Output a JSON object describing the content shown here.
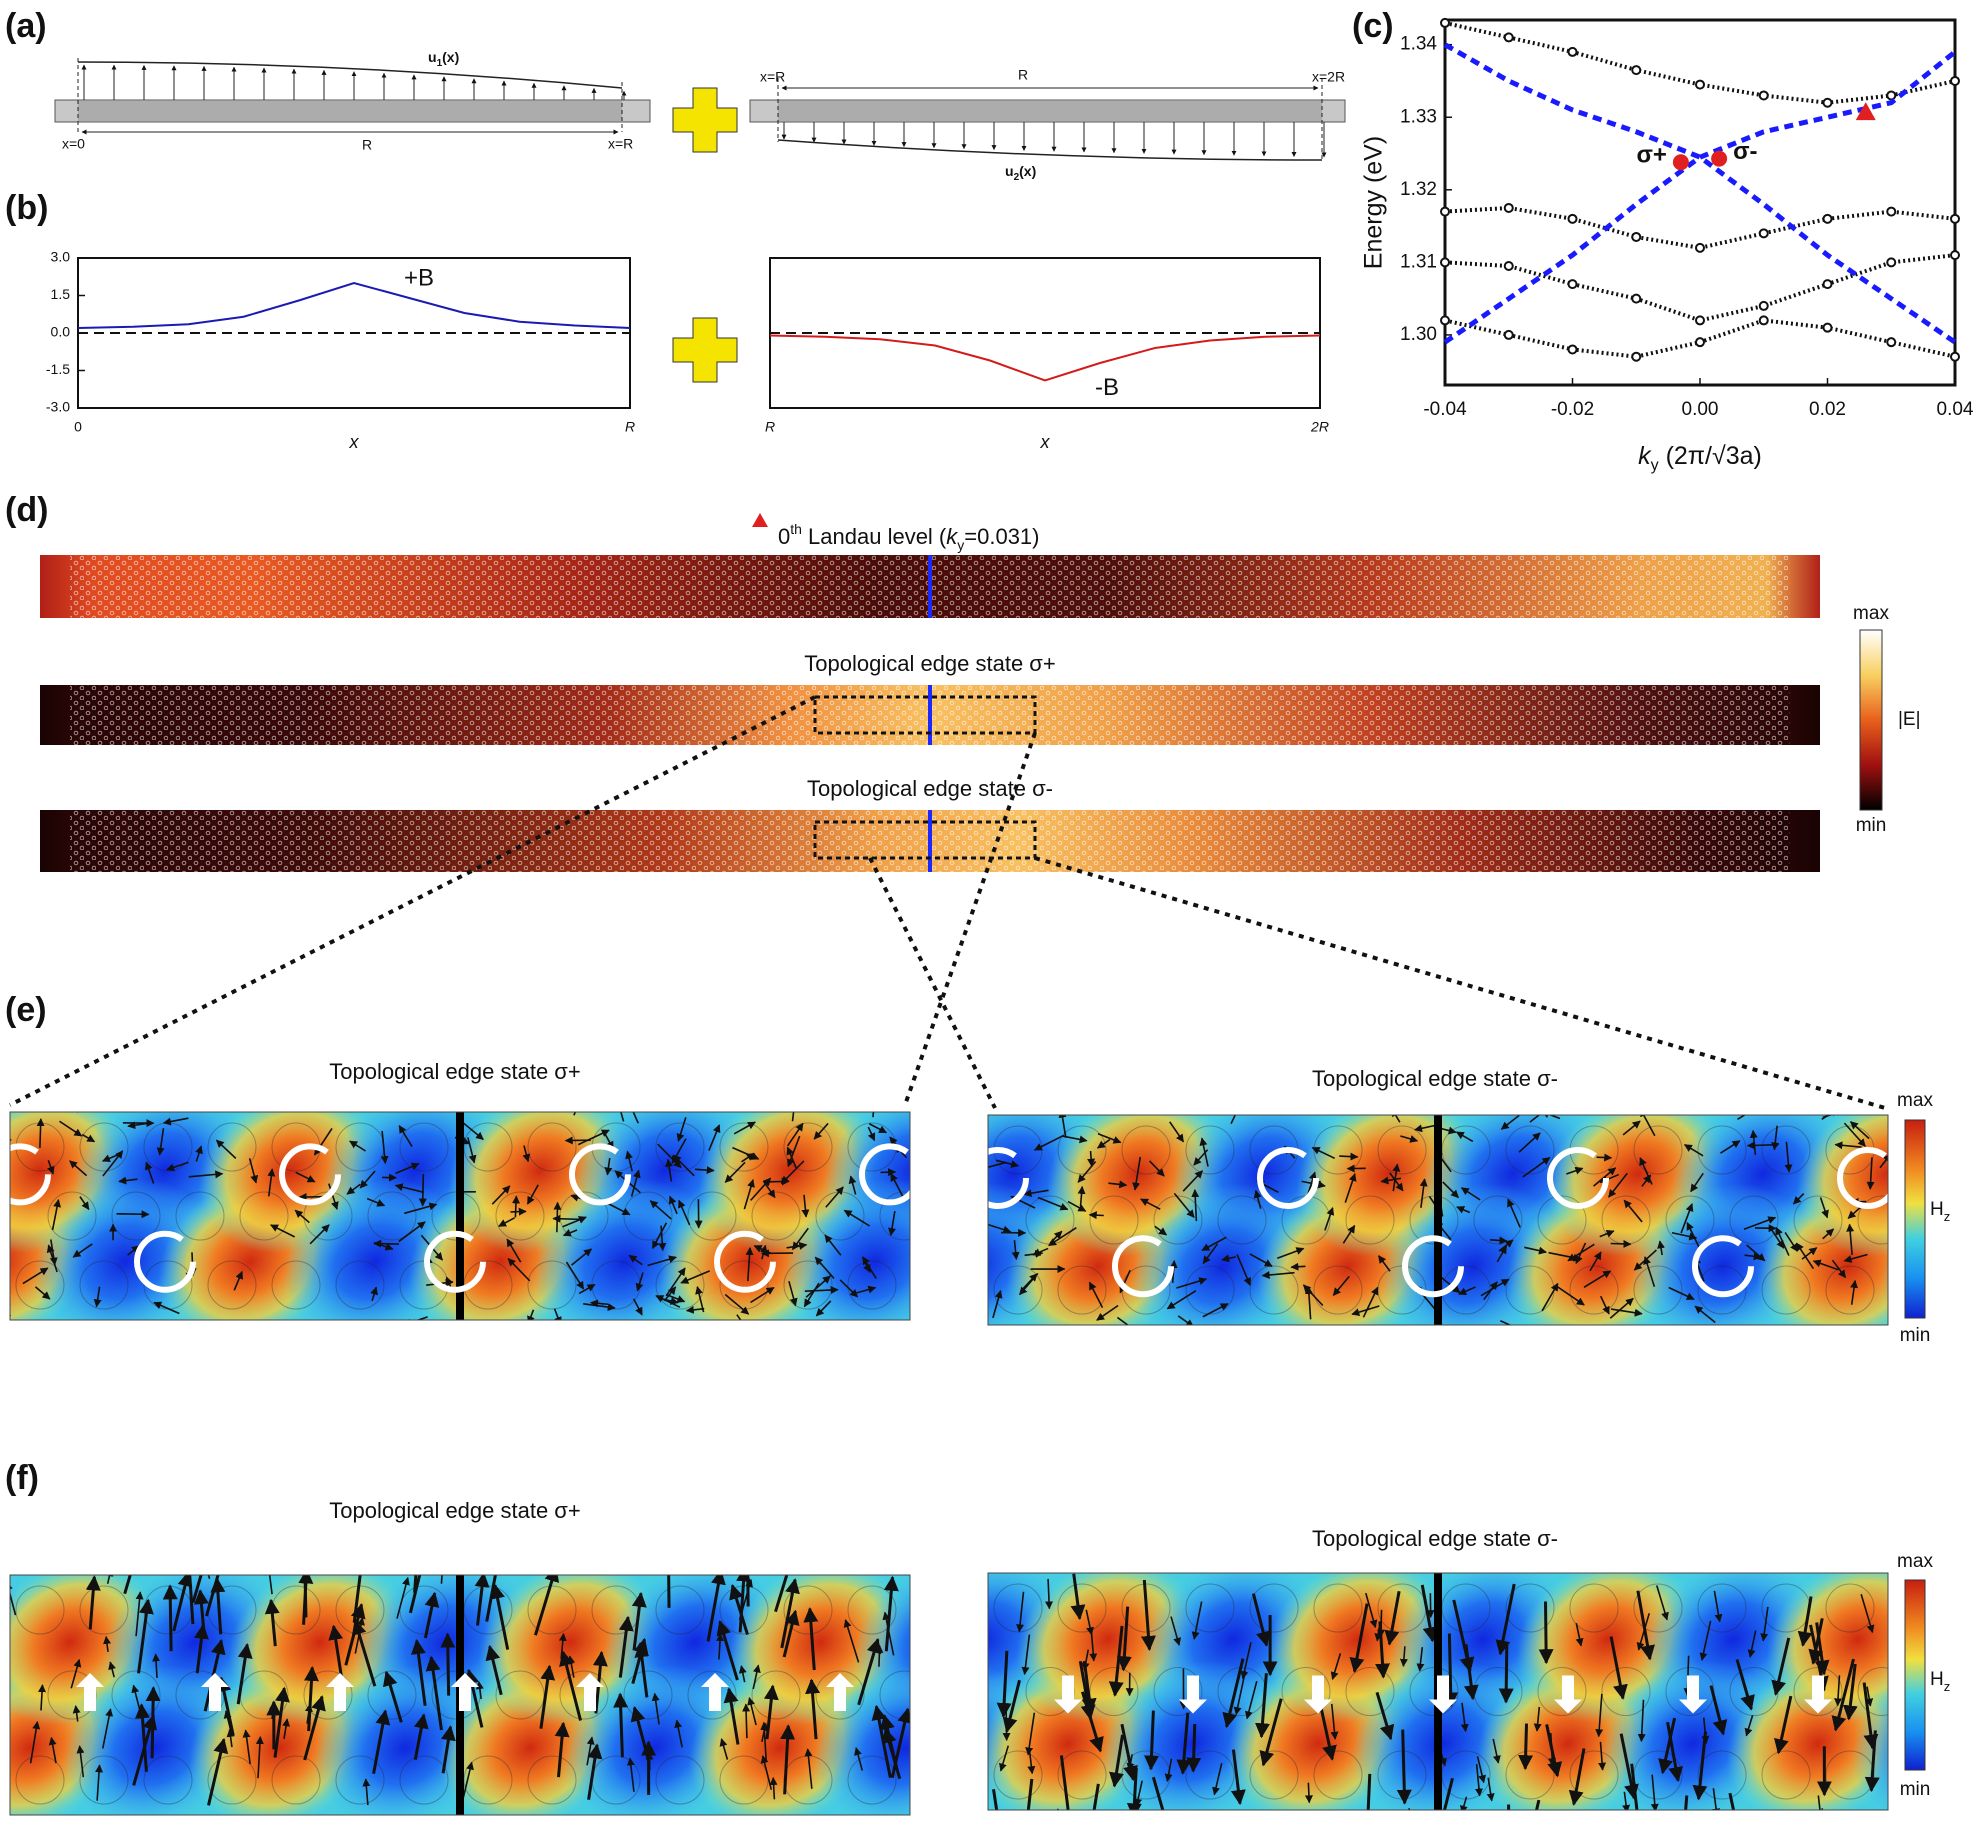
{
  "panel_labels": [
    "(a)",
    "(b)",
    "(c)",
    "(d)",
    "(e)",
    "(f)"
  ],
  "panel_a": {
    "u_left": {
      "base": "u",
      "sub": "1",
      "rest": "(x)"
    },
    "u_right": {
      "base": "u",
      "sub": "2",
      "rest": "(x)"
    },
    "left_labels": [
      "x=0",
      "R",
      "x=R"
    ],
    "right_labels": [
      "x=R",
      "R",
      "x=2R"
    ]
  },
  "chart_data": [
    {
      "type": "line",
      "x": [
        0,
        0.1,
        0.2,
        0.3,
        0.4,
        0.5,
        0.6,
        0.7,
        0.8,
        0.9,
        1
      ],
      "series": [
        {
          "color": "#1a1ab4",
          "values": [
            0.2,
            0.25,
            0.35,
            0.65,
            1.3,
            2.0,
            1.4,
            0.8,
            0.45,
            0.3,
            0.2
          ]
        }
      ],
      "xlim": [
        0,
        1
      ],
      "xticks": [
        0,
        {
          "value": 1,
          "label": "R"
        }
      ],
      "xlabel": "x",
      "ylim": [
        -3,
        3
      ],
      "yticks": [
        {
          "value": 3,
          "label": "3.0"
        },
        1.5,
        {
          "value": 0,
          "label": "0.0"
        },
        -1.5,
        {
          "value": -3,
          "label": "-3.0"
        }
      ],
      "zero_line": true,
      "annotation": "+B"
    },
    {
      "type": "line",
      "x": [
        1,
        1.1,
        1.2,
        1.3,
        1.4,
        1.5,
        1.6,
        1.7,
        1.8,
        1.9,
        2
      ],
      "series": [
        {
          "color": "#d41a1a",
          "values": [
            -0.1,
            -0.15,
            -0.25,
            -0.5,
            -1.1,
            -1.9,
            -1.2,
            -0.6,
            -0.3,
            -0.15,
            -0.1
          ]
        }
      ],
      "xlim": [
        1,
        2
      ],
      "xticks": [
        {
          "value": 1,
          "label": "R"
        },
        {
          "value": 2,
          "label": "2R"
        }
      ],
      "xlabel": "x",
      "ylim": [
        -3,
        3
      ],
      "zero_line": true,
      "annotation": "-B"
    },
    {
      "type": "line",
      "x": [
        -0.04,
        -0.03,
        -0.02,
        -0.01,
        0,
        0.01,
        0.02,
        0.03,
        0.04
      ],
      "series": [
        {
          "color": "#111111",
          "style": "markers",
          "values": [
            1.343,
            1.341,
            1.339,
            1.3365,
            1.3345,
            1.333,
            1.332,
            1.333,
            1.335
          ]
        },
        {
          "color": "#111111",
          "style": "markers",
          "values": [
            1.317,
            1.3175,
            1.316,
            1.3135,
            1.312,
            1.314,
            1.316,
            1.317,
            1.316
          ]
        },
        {
          "color": "#111111",
          "style": "markers",
          "values": [
            1.31,
            1.3095,
            1.307,
            1.305,
            1.302,
            1.304,
            1.307,
            1.31,
            1.311
          ]
        },
        {
          "color": "#111111",
          "style": "markers",
          "values": [
            1.302,
            1.3,
            1.298,
            1.297,
            1.299,
            1.302,
            1.301,
            1.299,
            1.297
          ]
        },
        {
          "color": "#1a1aff",
          "style": "dashed",
          "values": [
            1.34,
            1.335,
            1.331,
            1.328,
            1.3245,
            1.318,
            1.311,
            1.305,
            1.299
          ]
        },
        {
          "color": "#1a1aff",
          "style": "dashed",
          "values": [
            1.299,
            1.305,
            1.311,
            1.318,
            1.3245,
            1.328,
            1.33,
            1.332,
            1.339
          ]
        }
      ],
      "points": [
        {
          "x": -0.003,
          "y": 1.3238,
          "label": "σ+",
          "color": "#e02020",
          "marker": "circle"
        },
        {
          "x": 0.003,
          "y": 1.3243,
          "label": "σ-",
          "color": "#e02020",
          "marker": "circle"
        },
        {
          "x": 0.026,
          "y": 1.3307,
          "color": "#e02020",
          "marker": "triangle"
        }
      ],
      "xlim": [
        -0.04,
        0.04
      ],
      "xticks": [
        -0.04,
        -0.02,
        {
          "value": 0,
          "label": "0.00"
        },
        0.02,
        0.04
      ],
      "ylim": [
        1.2931,
        1.3434
      ],
      "yticks": [
        {
          "value": 1.3,
          "label": "1.30"
        },
        1.31,
        1.32,
        1.33,
        1.34
      ],
      "ylabel": "Energy (eV)",
      "xlabel": {
        "var": "k",
        "sub": "y",
        "rest": " (2π/√3a)"
      }
    }
  ],
  "panel_d": {
    "title": {
      "pre": "0",
      "sup": "th",
      "mid": " Landau level (",
      "var": "k",
      "sub": "y",
      "post": "=0.031)"
    },
    "strip_titles": [
      "Topological edge state σ+",
      "Topological edge state σ-"
    ],
    "colorbar": {
      "max": "max",
      "label": "|E|",
      "min": "min"
    }
  },
  "panel_e": {
    "titles": [
      "Topological edge state σ+",
      "Topological edge state σ-"
    ],
    "colorbar": {
      "max": "max",
      "label": {
        "base": "H",
        "sub": "z"
      },
      "min": "min"
    }
  },
  "panel_f": {
    "titles": [
      "Topological edge state σ+",
      "Topological edge state σ-"
    ],
    "colorbar": {
      "max": "max",
      "label": {
        "base": "H",
        "sub": "z"
      },
      "min": "min"
    }
  }
}
